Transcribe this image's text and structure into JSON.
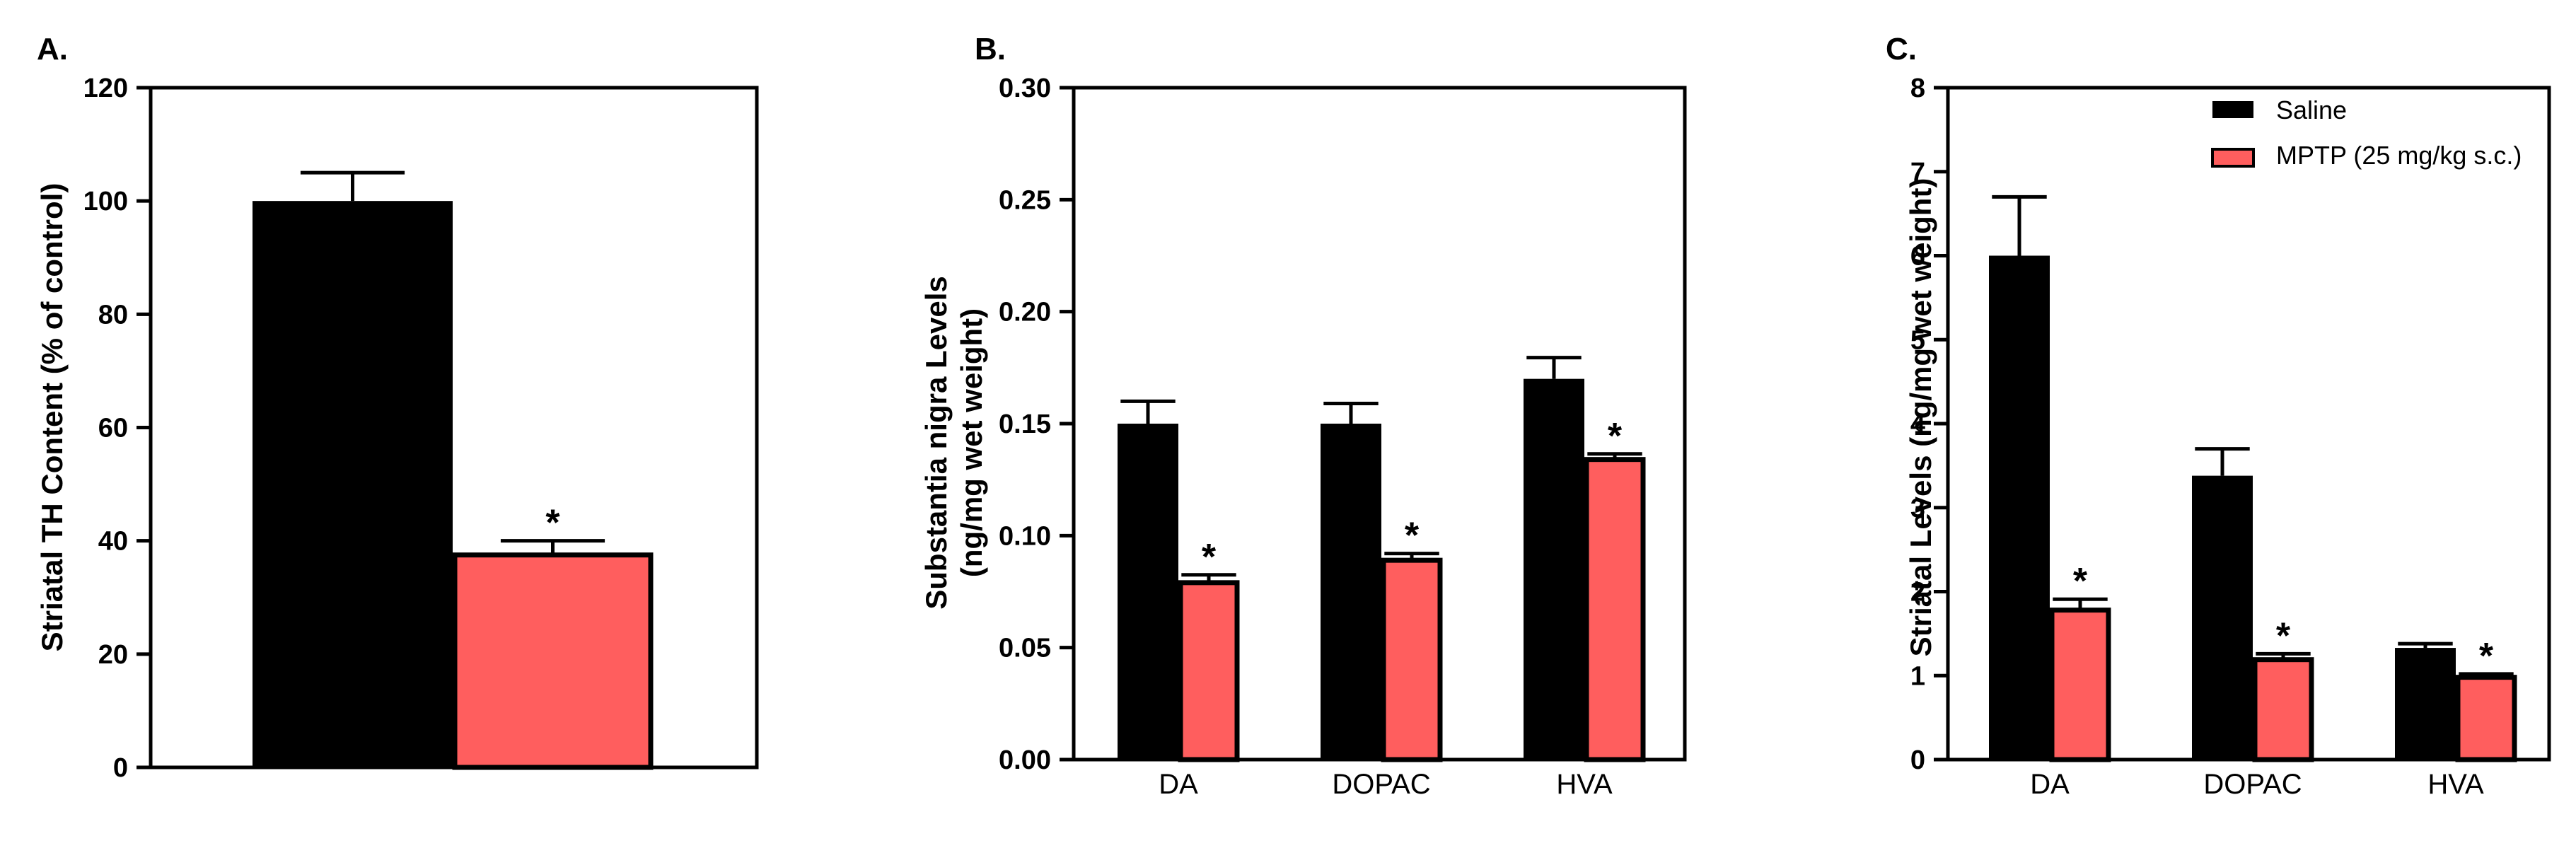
{
  "colors": {
    "saline": "#000000",
    "mptp": "#FF5E5E"
  },
  "legend": {
    "items": [
      {
        "label": "Saline",
        "color": "#000000"
      },
      {
        "label": "MPTP (25 mg/kg s.c.)",
        "color": "#FF5E5E"
      }
    ]
  },
  "chart_data": [
    {
      "panel": "A.",
      "type": "bar",
      "ylabel": "Striatal TH Content (% of control)",
      "ylim": [
        0,
        120
      ],
      "yticks": [
        0,
        20,
        40,
        60,
        80,
        100,
        120
      ],
      "ytick_labels": [
        "0",
        "20",
        "40",
        "60",
        "80",
        "100",
        "120"
      ],
      "categories": [
        ""
      ],
      "series": [
        {
          "values": [
            100
          ],
          "errors": [
            5
          ],
          "stars": [
            ""
          ],
          "color": "#000000"
        },
        {
          "values": [
            37.5
          ],
          "errors": [
            2.5
          ],
          "stars": [
            "*"
          ],
          "color": "#FF5E5E"
        }
      ]
    },
    {
      "panel": "B.",
      "type": "bar",
      "ylabel": [
        "Substantia nigra Levels",
        "(ng/mg wet weight)"
      ],
      "ylim": [
        0,
        0.3
      ],
      "yticks": [
        0,
        0.05,
        0.1,
        0.15,
        0.2,
        0.25,
        0.3
      ],
      "ytick_labels": [
        "0.00",
        "0.05",
        "0.10",
        "0.15",
        "0.20",
        "0.25",
        "0.30"
      ],
      "categories": [
        "DA",
        "DOPAC",
        "HVA"
      ],
      "series": [
        {
          "values": [
            0.15,
            0.15,
            0.17
          ],
          "errors": [
            0.01,
            0.009,
            0.0095
          ],
          "stars": [
            "",
            "",
            ""
          ],
          "color": "#000000"
        },
        {
          "values": [
            0.079,
            0.089,
            0.134
          ],
          "errors": [
            0.0035,
            0.003,
            0.0025
          ],
          "stars": [
            "*",
            "*",
            "*"
          ],
          "color": "#FF5E5E"
        }
      ]
    },
    {
      "panel": "C.",
      "type": "bar",
      "ylabel": "Striatal Levels (ng/mg wet weight)",
      "ylim": [
        0,
        8
      ],
      "yticks": [
        0,
        1,
        2,
        3,
        4,
        5,
        6,
        7,
        8
      ],
      "ytick_labels": [
        "0",
        "1",
        "2",
        "3",
        "4",
        "5",
        "6",
        "7",
        "8"
      ],
      "categories": [
        "DA",
        "DOPAC",
        "HVA"
      ],
      "series": [
        {
          "name": "Saline",
          "values": [
            6.0,
            3.38,
            1.33
          ],
          "errors": [
            0.7,
            0.32,
            0.05
          ],
          "stars": [
            "",
            "",
            ""
          ],
          "color": "#000000"
        },
        {
          "name": "MPTP (25 mg/kg s.c.)",
          "values": [
            1.78,
            1.19,
            0.98
          ],
          "errors": [
            0.13,
            0.07,
            0.04
          ],
          "stars": [
            "*",
            "*",
            "*"
          ],
          "color": "#FF5E5E"
        }
      ]
    }
  ]
}
